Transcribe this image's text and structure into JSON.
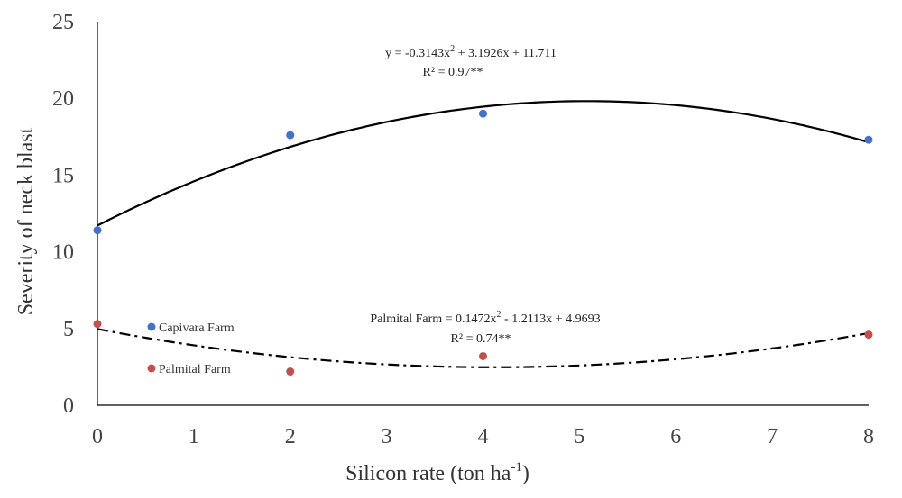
{
  "chart_data": {
    "type": "scatter",
    "xlabel": "Silicon rate (ton ha",
    "xlabel_sup": "-1",
    "xlabel_end": ")",
    "ylabel": "Severity of neck blast",
    "xlim": [
      0,
      8
    ],
    "ylim": [
      0,
      25
    ],
    "xticks": [
      0,
      1,
      2,
      3,
      4,
      5,
      6,
      7,
      8
    ],
    "yticks": [
      0,
      5,
      10,
      15,
      20,
      25
    ],
    "grid": false,
    "legend_position": "lower-left",
    "series": [
      {
        "name": "Capivara Farm",
        "color": "#4472C4",
        "x": [
          0,
          2,
          4,
          8
        ],
        "y": [
          11.4,
          17.6,
          19.0,
          17.3
        ],
        "trendline": {
          "type": "polynomial",
          "style": "solid",
          "a": -0.3143,
          "b": 3.1926,
          "c": 11.711,
          "equation": {
            "pre": "y = -0.3143x",
            "sup": "2",
            "post": "  + 3.1926x  + 11.711"
          },
          "r2": "R² = 0.97**"
        }
      },
      {
        "name": "Palmital Farm",
        "color": "#C0504D",
        "x": [
          0,
          2,
          4,
          8
        ],
        "y": [
          5.3,
          2.2,
          3.2,
          4.6
        ],
        "trendline": {
          "type": "polynomial",
          "style": "dash-dot",
          "a": 0.1472,
          "b": -1.2113,
          "c": 4.9693,
          "equation": {
            "pre": "Palmital  Farm = 0.1472x",
            "sup": "2",
            "post": "  - 1.2113x  + 4.9693"
          },
          "r2": "R² = 0.74**"
        }
      }
    ]
  }
}
